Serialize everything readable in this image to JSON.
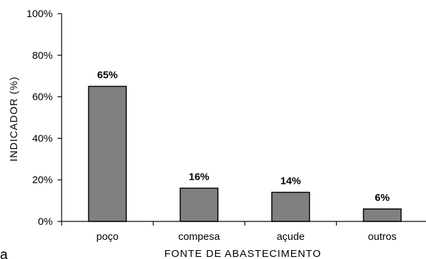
{
  "chart_data": {
    "type": "bar",
    "categories": [
      "poço",
      "compesa",
      "açude",
      "outros"
    ],
    "values": [
      65,
      16,
      14,
      6
    ],
    "data_labels": [
      "65%",
      "16%",
      "14%",
      "6%"
    ],
    "xlabel": "FONTE DE ABASTECIMENTO",
    "ylabel": "INDICADOR (%)",
    "ylim": [
      0,
      100
    ],
    "yticks": [
      0,
      20,
      40,
      60,
      80,
      100
    ],
    "ytick_labels": [
      "0%",
      "20%",
      "40%",
      "60%",
      "80%",
      "100%"
    ],
    "grid": false,
    "legend": "none",
    "bar_color": "#808080"
  },
  "panel_letter": "a"
}
